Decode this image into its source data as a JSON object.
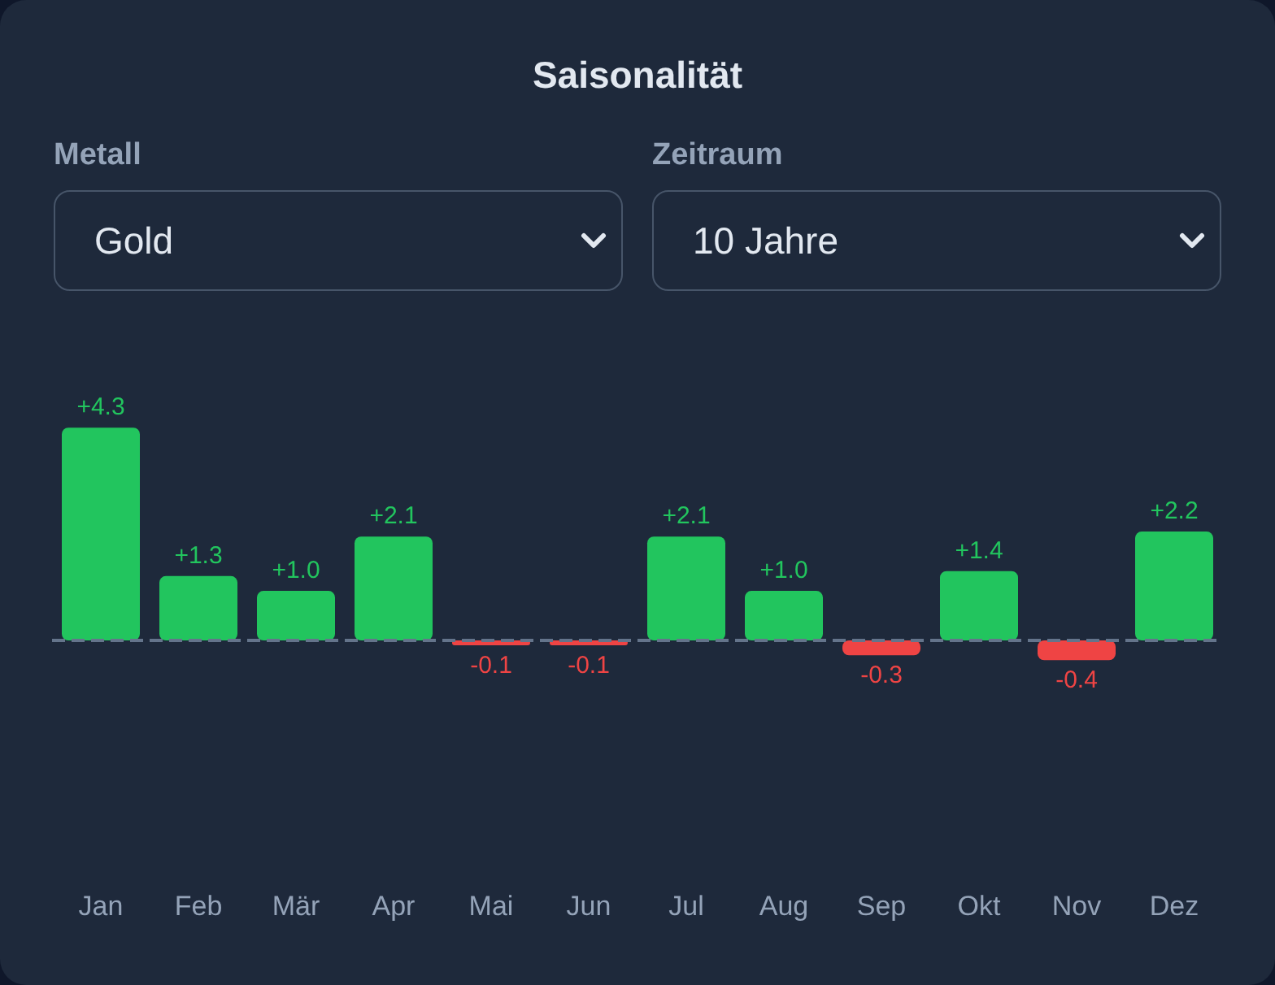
{
  "chart_data": {
    "type": "bar",
    "title": "Saisonalität",
    "annotations": [
      "Metall",
      "Gold",
      "Zeitraum",
      "10 Jahre"
    ],
    "categories": [
      "Jan",
      "Feb",
      "Mär",
      "Apr",
      "Mai",
      "Jun",
      "Jul",
      "Aug",
      "Sep",
      "Okt",
      "Nov",
      "Dez"
    ],
    "values": [
      4.3,
      1.3,
      1.0,
      2.1,
      -0.1,
      -0.1,
      2.1,
      1.0,
      -0.3,
      1.4,
      -0.4,
      2.2
    ],
    "value_labels": [
      "+4.3",
      "+1.3",
      "+1.0",
      "+2.1",
      "-0.1",
      "-0.1",
      "+2.1",
      "+1.0",
      "-0.3",
      "+1.4",
      "-0.4",
      "+2.2"
    ],
    "colors": [
      "#22c55e",
      "#22c55e",
      "#22c55e",
      "#22c55e",
      "#ef4444",
      "#ef4444",
      "#22c55e",
      "#22c55e",
      "#ef4444",
      "#22c55e",
      "#ef4444",
      "#22c55e"
    ],
    "ref_lines": [
      {
        "axis": "y",
        "value": 0,
        "color": "#64748b",
        "line_style": "dashed"
      }
    ]
  }
}
